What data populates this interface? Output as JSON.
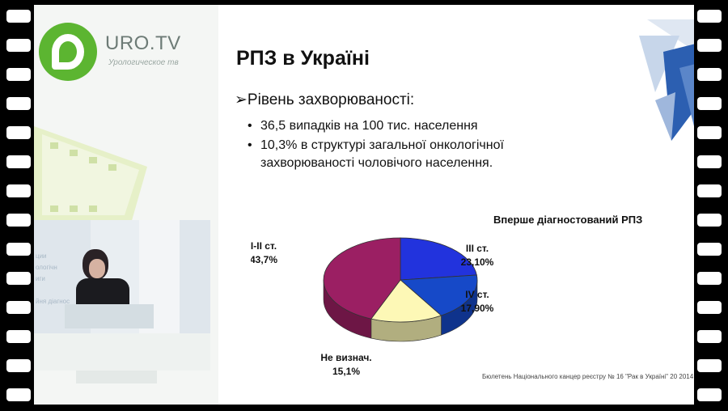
{
  "brand": {
    "name": "URO.TV",
    "tagline": "Урологическое тв"
  },
  "video": {
    "background_text": [
      "ции",
      "ологічн",
      "иги",
      "йня діагнос"
    ]
  },
  "slide": {
    "title": "РПЗ в Україні",
    "bullet": "Рівень захворюваності:",
    "sub_bullets": [
      "36,5 випадків на 100 тис. населення",
      "10,3% в структурі загальної онкологічної",
      "захворюваності чоловічого населення."
    ],
    "source": "Бюлетень Національного канцер реєстру № 16 \"Рак в Україні\" 20 2014"
  },
  "chart_data": {
    "type": "pie",
    "title": "Вперше діагностований РПЗ",
    "slices": [
      {
        "label": "I-II ст.",
        "value_label": "43,7%",
        "value": 43.7,
        "color": "#9b1f63"
      },
      {
        "label": "III ст.",
        "value_label": "23,10%",
        "value": 23.1,
        "color": "#2233dd"
      },
      {
        "label": "IV ст.",
        "value_label": "17,90%",
        "value": 17.9,
        "color": "#1649c8"
      },
      {
        "label": "Не визнач.",
        "value_label": "15,1%",
        "value": 15.1,
        "color": "#fdf8b6"
      }
    ]
  },
  "colors": {
    "brand_green": "#5cb531",
    "brand_text": "#6d7b76"
  }
}
